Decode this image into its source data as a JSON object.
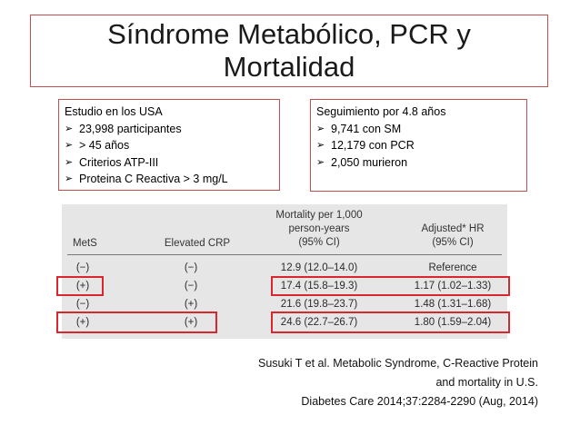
{
  "title": {
    "line1": "Síndrome Metabólico, PCR y",
    "line2": "Mortalidad"
  },
  "left_box": {
    "heading": "Estudio en los USA",
    "items": [
      "23,998 participantes",
      "> 45 años",
      "Criterios ATP-III",
      "Proteina C Reactiva > 3 mg/L"
    ]
  },
  "right_box": {
    "heading": "Seguimiento por 4.8 años",
    "items": [
      "9,741 con SM",
      "12,179 con PCR",
      "2,050 murieron"
    ]
  },
  "bullet_glyph": "➢",
  "table": {
    "headers": {
      "mets": "MetS",
      "crp": "Elevated CRP",
      "mortality": [
        "Mortality per 1,000",
        "person-years",
        "(95% CI)"
      ],
      "hr": [
        "Adjusted* HR",
        "(95% CI)"
      ]
    },
    "rows": [
      {
        "mets": "(−)",
        "crp": "(−)",
        "mortality": "12.9 (12.0–14.0)",
        "hr": "Reference"
      },
      {
        "mets": "(+)",
        "crp": "(−)",
        "mortality": "17.4 (15.8–19.3)",
        "hr": "1.17 (1.02–1.33)"
      },
      {
        "mets": "(−)",
        "crp": "(+)",
        "mortality": "21.6 (19.8–23.7)",
        "hr": "1.48 (1.31–1.68)"
      },
      {
        "mets": "(+)",
        "crp": "(+)",
        "mortality": "24.6 (22.7–26.7)",
        "hr": "1.80 (1.59–2.04)"
      }
    ],
    "highlighted_rows": [
      2,
      4
    ]
  },
  "citation": {
    "line1": "Susuki T et al.  Metabolic Syndrome, C-Reactive Protein",
    "line2": "and mortality in U.S.",
    "line3": "Diabetes Care 2014;37:2284-2290  (Aug, 2014)"
  },
  "colors": {
    "box_border": "#c0504d",
    "highlight": "#d9262f",
    "table_bg": "#e6e6e6"
  }
}
